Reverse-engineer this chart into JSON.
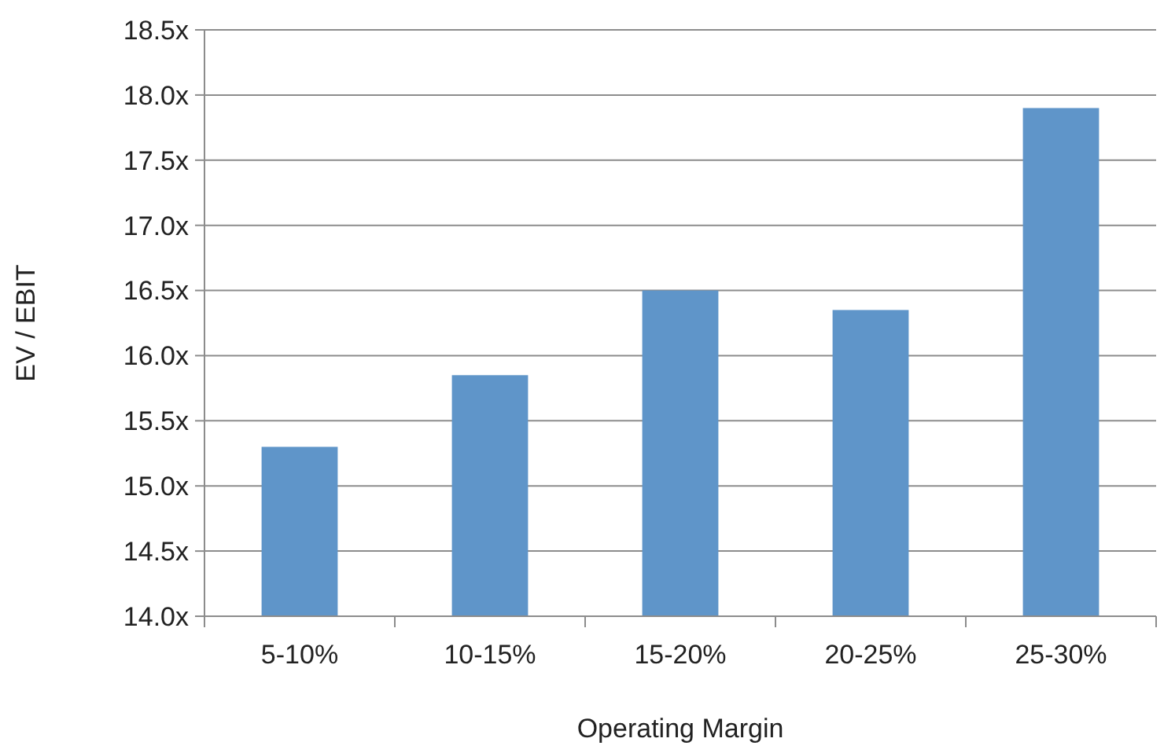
{
  "chart_data": {
    "type": "bar",
    "xlabel": "Operating Margin",
    "ylabel": "EV / EBIT",
    "categories": [
      "5-10%",
      "10-15%",
      "15-20%",
      "20-25%",
      "25-30%"
    ],
    "values": [
      15.3,
      15.85,
      16.5,
      16.35,
      17.9
    ],
    "color": "#5f95c9",
    "ylim": [
      14,
      18.5
    ],
    "yticks": [
      {
        "value": 14,
        "label": "14.0x"
      },
      {
        "value": 14.5,
        "label": "14.5x"
      },
      {
        "value": 15,
        "label": "15.0x"
      },
      {
        "value": 15.5,
        "label": "15.5x"
      },
      {
        "value": 16,
        "label": "16.0x"
      },
      {
        "value": 16.5,
        "label": "16.5x"
      },
      {
        "value": 17,
        "label": "17.0x"
      },
      {
        "value": 17.5,
        "label": "17.5x"
      },
      {
        "value": 18,
        "label": "18.0x"
      },
      {
        "value": 18.5,
        "label": "18.5x"
      }
    ],
    "grid": "y"
  }
}
